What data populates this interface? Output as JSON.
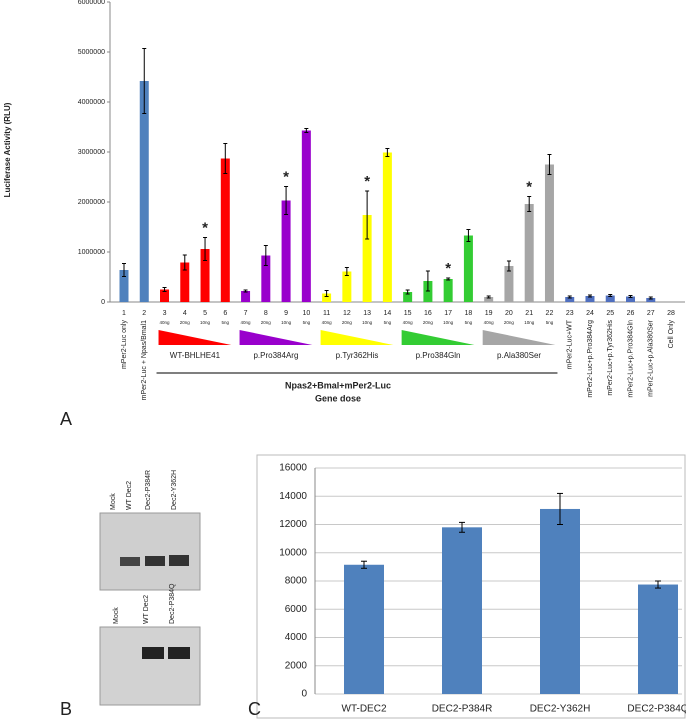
{
  "chart_data": [
    {
      "type": "bar",
      "y_label": "Luciferase Activity (RLU)",
      "categories": [
        "1",
        "2",
        "3",
        "4",
        "5",
        "6",
        "7",
        "8",
        "9",
        "10",
        "11",
        "12",
        "13",
        "14",
        "15",
        "16",
        "17",
        "18",
        "19",
        "20",
        "21",
        "22",
        "23",
        "24",
        "25",
        "26",
        "27",
        "28"
      ],
      "values": [
        640000,
        4420000,
        250000,
        790000,
        1060000,
        2870000,
        220000,
        930000,
        2030000,
        3430000,
        170000,
        610000,
        1740000,
        2990000,
        200000,
        420000,
        460000,
        1330000,
        100000,
        720000,
        1960000,
        2750000,
        100000,
        120000,
        130000,
        110000,
        80000,
        0
      ],
      "errors": [
        130000,
        650000,
        40000,
        150000,
        230000,
        300000,
        20000,
        200000,
        280000,
        40000,
        60000,
        80000,
        480000,
        80000,
        40000,
        200000,
        20000,
        120000,
        20000,
        100000,
        150000,
        200000,
        20000,
        20000,
        20000,
        20000,
        20000,
        0
      ],
      "colors": [
        "#4f81bd",
        "#4f81bd",
        "#ff0000",
        "#ff0000",
        "#ff0000",
        "#ff0000",
        "#9900cc",
        "#9900cc",
        "#9900cc",
        "#9900cc",
        "#ffff00",
        "#ffff00",
        "#ffff00",
        "#ffff00",
        "#33cc33",
        "#33cc33",
        "#33cc33",
        "#33cc33",
        "#a6a6a6",
        "#a6a6a6",
        "#a6a6a6",
        "#a6a6a6",
        "#4f6fbf",
        "#4f6fbf",
        "#4f6fbf",
        "#4f6fbf",
        "#4f6fbf",
        "#4f6fbf"
      ],
      "markers": [
        null,
        null,
        null,
        null,
        "*",
        null,
        null,
        null,
        "*",
        null,
        null,
        null,
        "*",
        null,
        null,
        null,
        "*",
        null,
        null,
        null,
        "*",
        null,
        null,
        null,
        null,
        null,
        null,
        null
      ],
      "doses": [
        null,
        null,
        "40ng",
        "20ng",
        "10ng",
        "5ng",
        "40ng",
        "20ng",
        "10ng",
        "5ng",
        "40ng",
        "20ng",
        "10ng",
        "5ng",
        "40ng",
        "20ng",
        "10ng",
        "5ng",
        "40ng",
        "20ng",
        "10ng",
        "5ng",
        null,
        null,
        null,
        null,
        null,
        null
      ],
      "sample_labels": [
        "mPer2-Luc only",
        "mPer2-Luc + Npas/Bmal1",
        null,
        null,
        null,
        null,
        null,
        null,
        null,
        null,
        null,
        null,
        null,
        null,
        null,
        null,
        null,
        null,
        null,
        null,
        null,
        null,
        "mPer2-Luc+WT",
        "mPer2-Luc+p.Pro384Arg",
        "mPer2-Luc+p.Tyr362His",
        "mPer2-Luc+p.Pro384Gln",
        "mPer2-Luc+p.Ala380Ser",
        "Cell Only"
      ],
      "groups": [
        {
          "label": "WT-BHLHE41",
          "color": "#ff0000"
        },
        {
          "label": "p.Pro384Arg",
          "color": "#9900cc"
        },
        {
          "label": "p.Tyr362His",
          "color": "#ffff00"
        },
        {
          "label": "p.Pro384Gln",
          "color": "#33cc33"
        },
        {
          "label": "p.Ala380Ser",
          "color": "#a6a6a6"
        }
      ],
      "bracket_label": "Npas2+Bmal+mPer2-Luc",
      "bracket_sublabel": "Gene dose",
      "ylim": [
        0,
        6000000
      ],
      "yticks": [
        0,
        1000000,
        2000000,
        3000000,
        4000000,
        5000000,
        6000000
      ]
    },
    {
      "type": "bar",
      "categories": [
        "WT-DEC2",
        "DEC2-P384R",
        "DEC2-Y362H",
        "DEC2-P384Q"
      ],
      "values": [
        9150,
        11800,
        13100,
        7750
      ],
      "errors": [
        250,
        350,
        1100,
        250
      ],
      "color": "#4f81bd",
      "ylim": [
        0,
        16000
      ],
      "yticks": [
        0,
        2000,
        4000,
        6000,
        8000,
        10000,
        12000,
        14000,
        16000
      ],
      "grid": true
    }
  ],
  "panel_labels": [
    "A",
    "B",
    "C"
  ],
  "blots": [
    {
      "lanes": [
        "Mock",
        "WT Dec2",
        "Dec2-P384R",
        "Dec2-Y362H"
      ]
    },
    {
      "lanes": [
        "Mock",
        "WT Dec2",
        "Dec2-P384Q"
      ]
    }
  ]
}
